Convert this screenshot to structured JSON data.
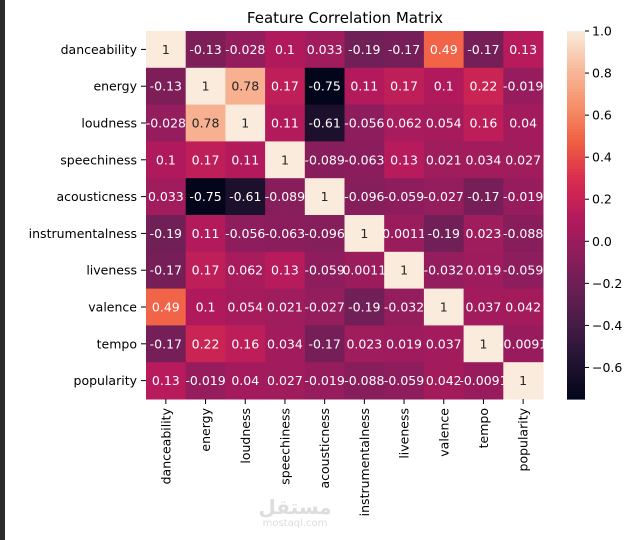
{
  "chart_data": {
    "type": "heatmap",
    "title": "Feature Correlation Matrix",
    "labels": [
      "danceability",
      "energy",
      "loudness",
      "speechiness",
      "acousticness",
      "instrumentalness",
      "liveness",
      "valence",
      "tempo",
      "popularity"
    ],
    "values": [
      [
        1,
        -0.13,
        -0.028,
        0.1,
        0.033,
        -0.19,
        -0.17,
        0.49,
        -0.17,
        0.13
      ],
      [
        -0.13,
        1,
        0.78,
        0.17,
        -0.75,
        0.11,
        0.17,
        0.1,
        0.22,
        -0.019
      ],
      [
        -0.028,
        0.78,
        1,
        0.11,
        -0.61,
        -0.056,
        0.062,
        0.054,
        0.16,
        0.04
      ],
      [
        0.1,
        0.17,
        0.11,
        1,
        -0.089,
        -0.063,
        0.13,
        0.021,
        0.034,
        0.027
      ],
      [
        0.033,
        -0.75,
        -0.61,
        -0.089,
        1,
        -0.096,
        -0.059,
        -0.027,
        -0.17,
        -0.019
      ],
      [
        -0.19,
        0.11,
        -0.056,
        -0.063,
        -0.096,
        1,
        0.0011,
        -0.19,
        0.023,
        -0.088
      ],
      [
        -0.17,
        0.17,
        0.062,
        0.13,
        -0.059,
        0.0011,
        1,
        -0.032,
        0.019,
        -0.059
      ],
      [
        0.49,
        0.1,
        0.054,
        0.021,
        -0.027,
        -0.19,
        -0.032,
        1,
        0.037,
        0.042
      ],
      [
        -0.17,
        0.22,
        0.16,
        0.034,
        -0.17,
        0.023,
        0.019,
        0.037,
        1,
        -0.0091
      ],
      [
        0.13,
        -0.019,
        0.04,
        0.027,
        -0.019,
        -0.088,
        -0.059,
        0.042,
        -0.0091,
        1
      ]
    ],
    "colorbar": {
      "vmin": -0.75,
      "vmax": 1.0,
      "ticks": [
        1.0,
        0.8,
        0.6,
        0.4,
        0.2,
        0.0,
        -0.2,
        -0.4,
        -0.6
      ]
    },
    "colormap": "rocket"
  },
  "watermark": {
    "arabic": "مستقل",
    "latin": "mostaql.com"
  }
}
